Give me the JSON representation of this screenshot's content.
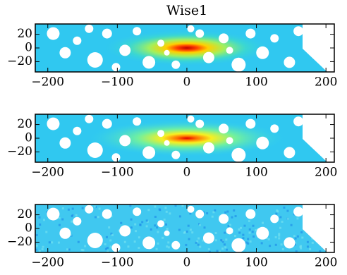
{
  "chart_data": [
    {
      "type": "image",
      "title": "Wise1",
      "xlim": [
        -218,
        212
      ],
      "ylim": [
        -35,
        35
      ],
      "xticks": [
        {
          "value": -200,
          "label": "−200"
        },
        {
          "value": -100,
          "label": "−100"
        },
        0,
        100,
        200
      ],
      "yticks": [
        20,
        0,
        {
          "value": -20,
          "label": "−20"
        }
      ]
    },
    {
      "type": "image",
      "xlim": [
        -218,
        212
      ],
      "ylim": [
        -35,
        35
      ],
      "xticks": [
        {
          "value": -200,
          "label": "−200"
        },
        {
          "value": -100,
          "label": "−100"
        },
        0,
        100,
        200
      ],
      "yticks": [
        20,
        0,
        {
          "value": -20,
          "label": "−20"
        }
      ]
    },
    {
      "type": "image",
      "xlim": [
        -218,
        212
      ],
      "ylim": [
        -35,
        35
      ],
      "xticks": [
        {
          "value": -200,
          "label": "−200"
        },
        {
          "value": -100,
          "label": "−100"
        },
        0,
        100,
        200
      ],
      "yticks": [
        20,
        0,
        {
          "value": -20,
          "label": "−20"
        }
      ]
    }
  ]
}
